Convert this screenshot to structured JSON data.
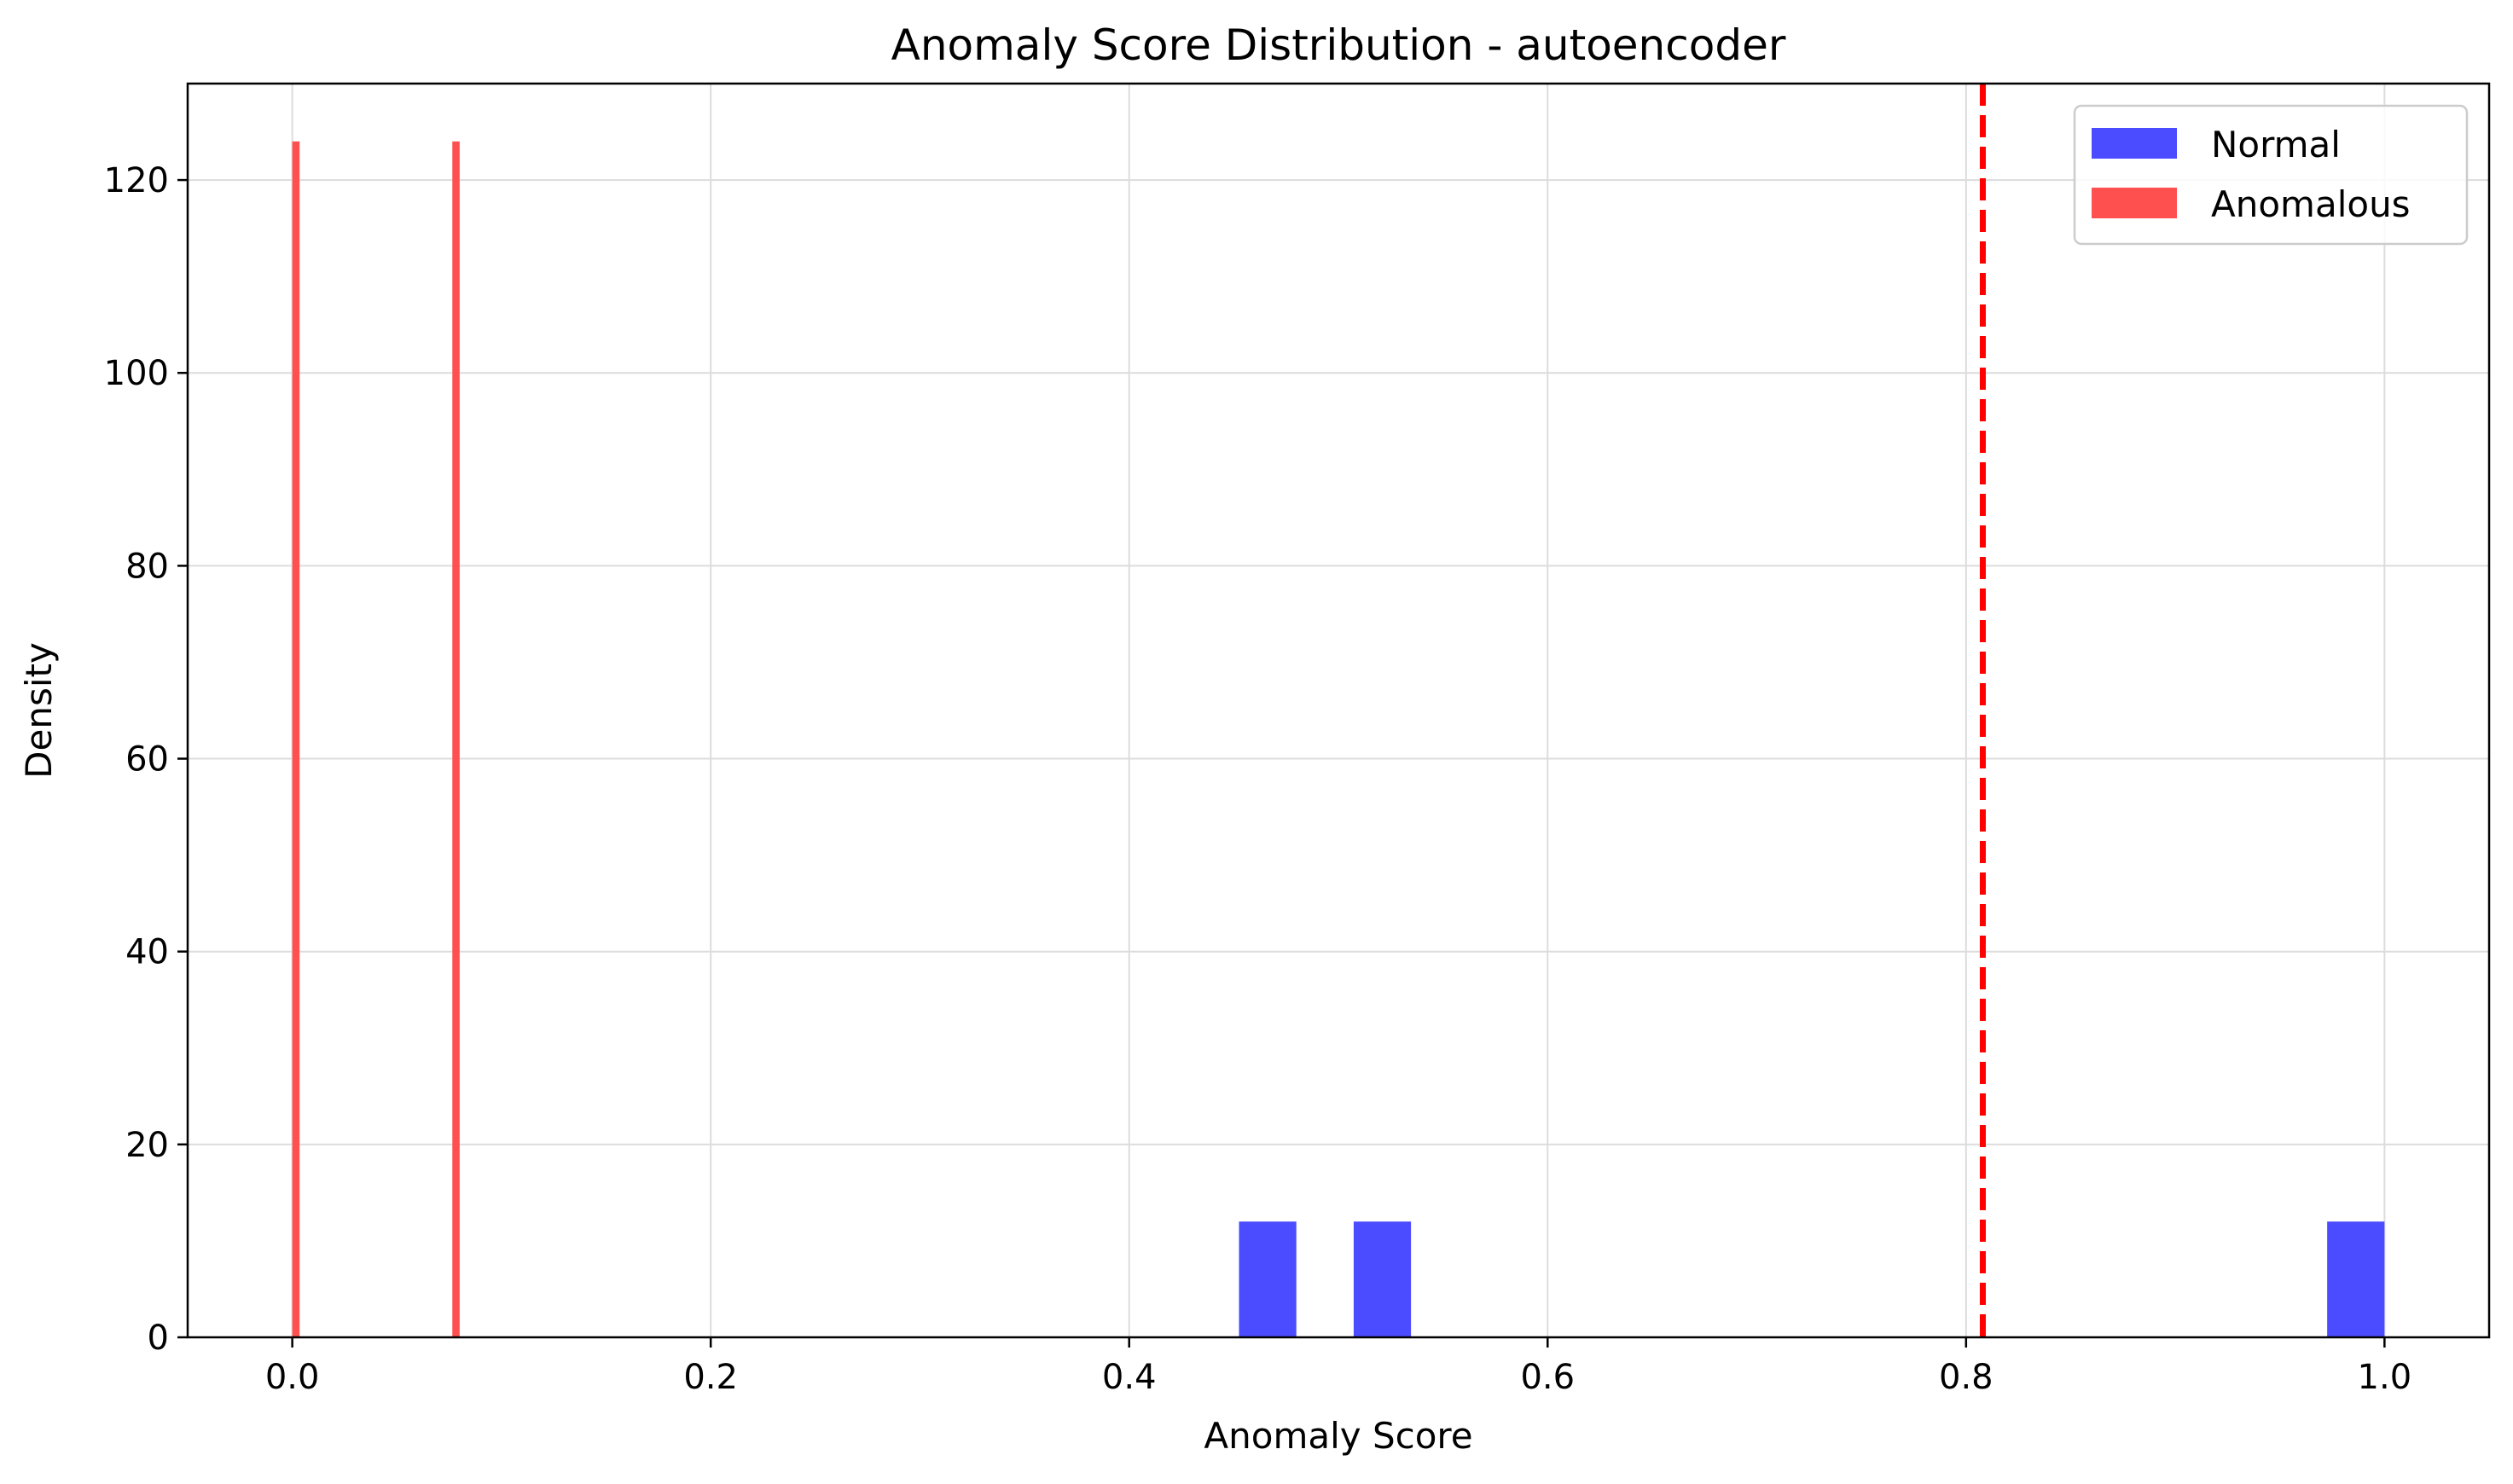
{
  "chart_data": {
    "type": "bar",
    "title": "Anomaly Score Distribution - autoencoder",
    "xlabel": "Anomaly Score",
    "ylabel": "Density",
    "xlim": [
      -0.05,
      1.05
    ],
    "ylim": [
      0,
      130
    ],
    "xticks": [
      0.0,
      0.2,
      0.4,
      0.6,
      0.8,
      1.0
    ],
    "xtick_labels": [
      "0.0",
      "0.2",
      "0.4",
      "0.6",
      "0.8",
      "1.0"
    ],
    "yticks": [
      0,
      20,
      40,
      60,
      80,
      100,
      120
    ],
    "ytick_labels": [
      "0",
      "20",
      "40",
      "60",
      "80",
      "100",
      "120"
    ],
    "grid": true,
    "legend_position": "top-right",
    "series": [
      {
        "name": "Normal",
        "color": "#4B4BFF",
        "bins": [
          {
            "x0": 0.4525,
            "x1": 0.4799,
            "value": 12
          },
          {
            "x0": 0.5073,
            "x1": 0.5347,
            "value": 12
          },
          {
            "x0": 0.9726,
            "x1": 1.0,
            "value": 12
          }
        ]
      },
      {
        "name": "Anomalous",
        "color": "#FF5050",
        "bins": [
          {
            "x0": 0.0,
            "x1": 0.0035,
            "value": 124
          },
          {
            "x0": 0.0765,
            "x1": 0.08,
            "value": 124
          }
        ]
      }
    ],
    "threshold": {
      "value": 0.808,
      "color": "#FF0000",
      "style": "dashed"
    }
  }
}
